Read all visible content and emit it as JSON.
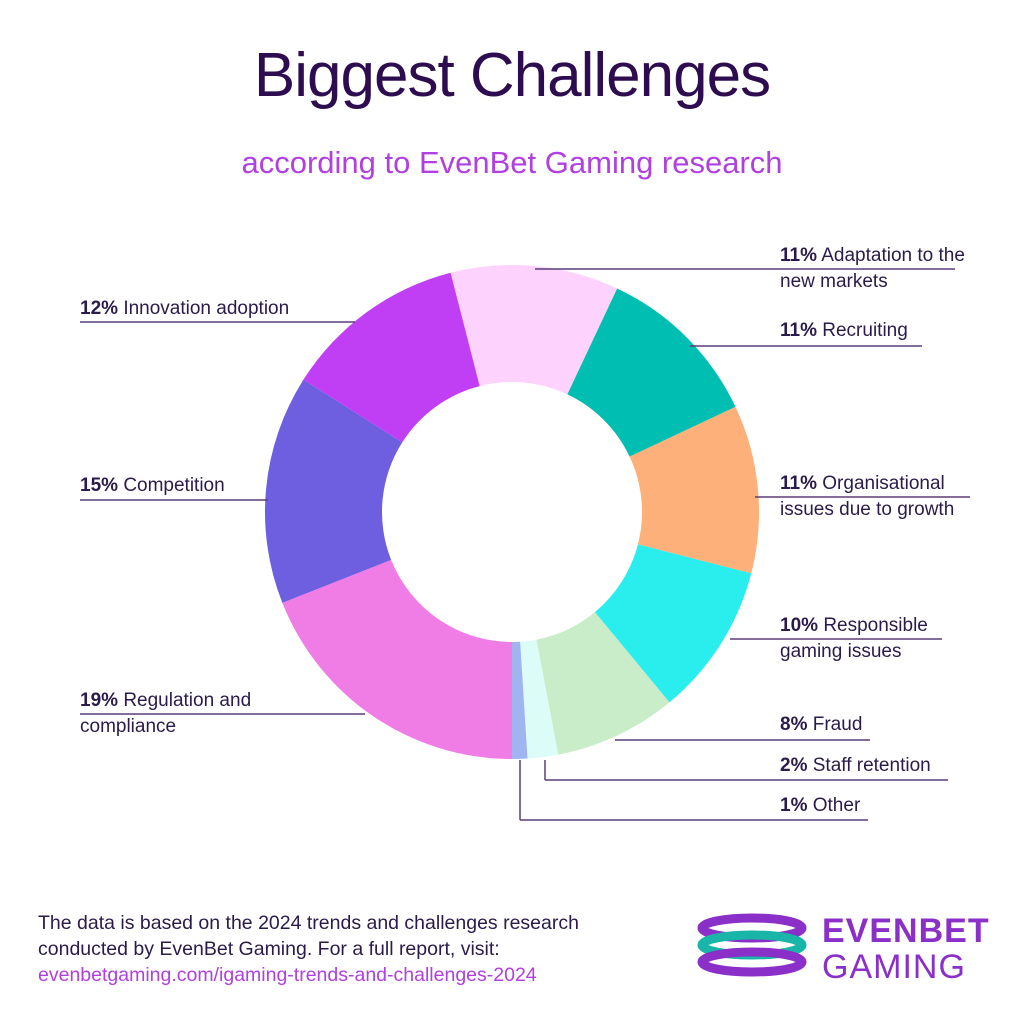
{
  "chart_data": {
    "type": "donut",
    "title": "Biggest Challenges",
    "subtitle": "according to EvenBet Gaming research",
    "categories": [
      "Adaptation to the new markets",
      "Recruiting",
      "Organisational issues due to growth",
      "Responsible gaming issues",
      "Fraud",
      "Staff retention",
      "Other",
      "Regulation and compliance",
      "Competition",
      "Innovation adoption"
    ],
    "values": [
      11,
      11,
      11,
      10,
      8,
      2,
      1,
      19,
      15,
      12
    ],
    "value_labels": [
      "11%",
      "11%",
      "11%",
      "10%",
      "8%",
      "2%",
      "1%",
      "19%",
      "15%",
      "12%"
    ],
    "colors": [
      "#fdd3fd",
      "#00bfb2",
      "#fdb07a",
      "#2aeeee",
      "#c9ecc9",
      "#dcfcf8",
      "#a0b4f0",
      "#f07de6",
      "#6e5fe0",
      "#c03ff5"
    ]
  },
  "footer": {
    "lines": [
      "The data is based on the 2024 trends and challenges research",
      "conducted by EvenBet Gaming. For a full report, visit:"
    ],
    "link": "evenbetgaming.com/igaming-trends-and-challenges-2024"
  },
  "logo": [
    "EVENBET",
    "GAMING"
  ]
}
